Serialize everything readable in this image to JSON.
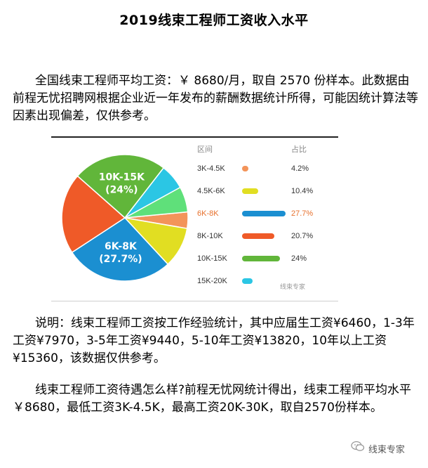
{
  "title": "2019线束工程师工资收入水平",
  "paragraphs": {
    "p1": "全国线束工程师平均工资：￥ 8680/月，取自 2570 份样本。此数据由前程无忧招聘网根据企业近一年发布的薪酬数据统计所得，可能因统计算法等因素出现偏差，仅供参考。",
    "p2": "说明：线束工程师工资按工作经验统计，其中应届生工资¥6460，1-3年工资¥7970，3-5年工资¥9440，5-10年工资¥13820，10年以上工资¥15360，该数据仅供参考。",
    "p3": "线束工程师工资待遇怎么样?前程无忧网统计得出，线束工程师平均水平￥8680，最低工资3K-4.5K，最高工资20K-30K，取自2570份样本。"
  },
  "chart_data": {
    "type": "pie",
    "legend_header": {
      "range": "区间",
      "share": "占比"
    },
    "slices": [
      {
        "label": "3K-4.5K",
        "value": 4.2,
        "display": "4.2%",
        "color": "#f3945a"
      },
      {
        "label": "4.5K-6K",
        "value": 10.4,
        "display": "10.4%",
        "color": "#e1de22"
      },
      {
        "label": "6K-8K",
        "value": 27.7,
        "display": "27.7%",
        "color": "#1b8fd1",
        "highlight": true,
        "pie_label": "6K-8K",
        "pie_pct": "(27.7%)"
      },
      {
        "label": "8K-10K",
        "value": 20.7,
        "display": "20.7%",
        "color": "#ef5a28"
      },
      {
        "label": "10K-15K",
        "value": 24,
        "display": "24%",
        "color": "#61b63a",
        "pie_label": "10K-15K",
        "pie_pct": "(24%)"
      },
      {
        "label": "15K-20K",
        "value": 6.5,
        "display": "",
        "color": "#2bc6e4"
      },
      {
        "label": "",
        "value": 6.5,
        "display": "",
        "color": "#5fe07a"
      }
    ],
    "watermark": "线束专家"
  },
  "watermark": {
    "text": "线束专家",
    "icon": "chat-bubble-icon"
  }
}
